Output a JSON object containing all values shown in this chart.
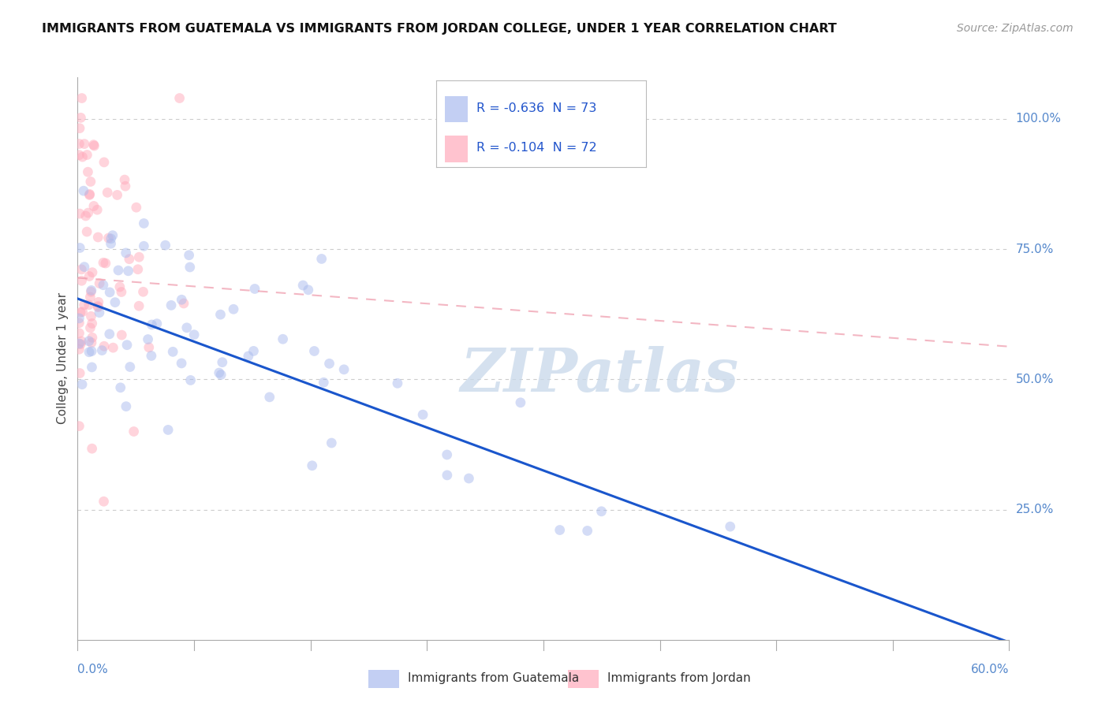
{
  "title": "IMMIGRANTS FROM GUATEMALA VS IMMIGRANTS FROM JORDAN COLLEGE, UNDER 1 YEAR CORRELATION CHART",
  "source": "Source: ZipAtlas.com",
  "ylabel": "College, Under 1 year",
  "xlim": [
    0.0,
    0.6
  ],
  "ylim": [
    0.0,
    1.08
  ],
  "ytick_vals": [
    0.25,
    0.5,
    0.75,
    1.0
  ],
  "ytick_labels": [
    "25.0%",
    "50.0%",
    "75.0%",
    "100.0%"
  ],
  "xtick_left_label": "0.0%",
  "xtick_right_label": "60.0%",
  "legend_entries": [
    {
      "label_r": "R = ",
      "label_val": "-0.636",
      "label_n": "  N = ",
      "label_nval": "73",
      "box_color": "#aabbee"
    },
    {
      "label_r": "R = ",
      "label_val": "-0.104",
      "label_n": "  N = ",
      "label_nval": "72",
      "box_color": "#ffaabb"
    }
  ],
  "guatemala_scatter_color": "#aabbee",
  "jordan_scatter_color": "#ffaabb",
  "trendline_guatemala_color": "#1a56cc",
  "trendline_jordan_color": "#ee99aa",
  "trendline_guatemala_slope": -1.1,
  "trendline_guatemala_intercept": 0.655,
  "trendline_jordan_slope": -0.22,
  "trendline_jordan_intercept": 0.695,
  "watermark_text": "ZIPatlas",
  "watermark_color": "#c8d8ea",
  "grid_color": "#cccccc",
  "axis_color": "#aaaaaa",
  "right_tick_label_color": "#5588cc",
  "title_color": "#111111",
  "source_color": "#999999",
  "background_color": "#ffffff",
  "bottom_legend_guatemala": "Immigrants from Guatemala",
  "bottom_legend_jordan": "Immigrants from Jordan"
}
